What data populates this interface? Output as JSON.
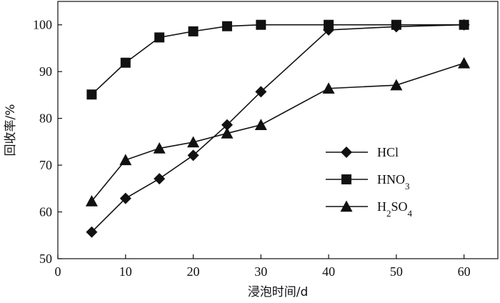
{
  "chart_data": {
    "type": "line",
    "xlabel": "浸泡时间/d",
    "ylabel": "回收率/%",
    "xlim": [
      0,
      65
    ],
    "ylim": [
      50,
      105
    ],
    "xticks": [
      0,
      10,
      20,
      30,
      40,
      50,
      60
    ],
    "yticks": [
      50,
      60,
      70,
      80,
      90,
      100
    ],
    "grid": false,
    "legend_position": "right-middle",
    "series": [
      {
        "name": "HCl",
        "legend_label": {
          "main": "HCl",
          "sub1": "",
          "mid": "",
          "sub2": ""
        },
        "marker": "diamond",
        "x": [
          5,
          10,
          15,
          20,
          25,
          30,
          40,
          50,
          60
        ],
        "y": [
          55.7,
          62.9,
          67.1,
          72.1,
          78.6,
          85.7,
          98.9,
          99.6,
          100.0
        ]
      },
      {
        "name": "HNO3",
        "legend_label": {
          "main": "HNO",
          "sub1": "3",
          "mid": "",
          "sub2": ""
        },
        "marker": "square",
        "x": [
          5,
          10,
          15,
          20,
          25,
          30,
          40,
          50,
          60
        ],
        "y": [
          85.1,
          91.9,
          97.3,
          98.6,
          99.7,
          100.0,
          100.0,
          100.0,
          100.0
        ]
      },
      {
        "name": "H2SO4",
        "legend_label": {
          "main": "H",
          "sub1": "2",
          "mid": "SO",
          "sub2": "4"
        },
        "marker": "triangle",
        "x": [
          5,
          10,
          15,
          20,
          25,
          30,
          40,
          50,
          60
        ],
        "y": [
          62.3,
          71.1,
          73.6,
          74.9,
          76.8,
          78.6,
          86.4,
          87.1,
          91.8
        ]
      }
    ]
  }
}
